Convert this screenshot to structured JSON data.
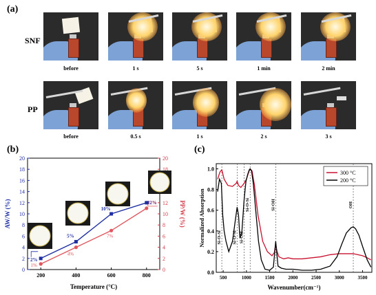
{
  "panel_a": {
    "label": "(a)",
    "rows": [
      {
        "name": "SNF",
        "captions": [
          "before",
          "1 s",
          "5 s",
          "1 min",
          "2 min"
        ]
      },
      {
        "name": "PP",
        "captions": [
          "before",
          "0.5 s",
          "1 s",
          "2 s",
          "3 s"
        ]
      }
    ]
  },
  "panel_b": {
    "label": "(b)"
  },
  "panel_c": {
    "label": "(c)"
  },
  "chart_data": [
    {
      "type": "line",
      "xlabel": "Temperature (°C)",
      "ylabel_left": "AW/W (%)",
      "ylabel_right": "PP/W (%)",
      "x": [
        200,
        400,
        600,
        800
      ],
      "xlim": [
        125,
        875
      ],
      "xticks": [
        "200",
        "400",
        "600",
        "800"
      ],
      "ylim": [
        0,
        20
      ],
      "yticks": [
        "0",
        "2",
        "4",
        "6",
        "8",
        "10",
        "12",
        "14",
        "16",
        "18",
        "20"
      ],
      "series": [
        {
          "name": "AW/W (%)",
          "axis": "left",
          "color": "#1f2fa3",
          "values": [
            2,
            5,
            10,
            12
          ],
          "labels": [
            "2%",
            "5%",
            "10%",
            "12%"
          ]
        },
        {
          "name": "PP/W (%)",
          "axis": "right",
          "color": "#e0575f",
          "values": [
            1,
            4,
            7,
            11
          ],
          "labels": [
            "1%",
            "4%",
            "7%",
            "11%"
          ]
        }
      ],
      "grid": false
    },
    {
      "type": "line",
      "xlabel": "Wavenumber(cm⁻¹)",
      "ylabel": "Normalized Absorption",
      "xlim": [
        350,
        3700
      ],
      "ylim": [
        0,
        1.05
      ],
      "xticks": [
        "500",
        "1000",
        "1500",
        "2000",
        "2500",
        "3000",
        "3500"
      ],
      "yticks": [
        "0.0",
        "0.2",
        "0.4",
        "0.6",
        "0.8",
        "1.0"
      ],
      "legend": {
        "position": "top-right",
        "entries": [
          "300 °C",
          "200 °C"
        ]
      },
      "annotations": [
        {
          "x": 470,
          "text": "Si-O-Si"
        },
        {
          "x": 800,
          "text": "Si-O-Si"
        },
        {
          "x": 950,
          "text": "Si-OH"
        },
        {
          "x": 1080,
          "text": "Si-O-Si"
        },
        {
          "x": 1630,
          "text": "Si-OH"
        },
        {
          "x": 3300,
          "text": "OH"
        }
      ],
      "series": [
        {
          "name": "300 °C",
          "color": "#c8102e",
          "x": [
            380,
            430,
            470,
            520,
            600,
            700,
            780,
            800,
            830,
            880,
            950,
            1000,
            1050,
            1080,
            1120,
            1170,
            1250,
            1350,
            1450,
            1550,
            1600,
            1630,
            1660,
            1700,
            1800,
            1900,
            2000,
            2200,
            2400,
            2600,
            2800,
            3000,
            3200,
            3300,
            3400,
            3500,
            3600,
            3680
          ],
          "y": [
            0.9,
            0.97,
            0.99,
            0.9,
            0.84,
            0.83,
            0.86,
            0.88,
            0.84,
            0.82,
            0.86,
            0.9,
            0.97,
            1.0,
            0.98,
            0.85,
            0.55,
            0.3,
            0.2,
            0.16,
            0.19,
            0.27,
            0.2,
            0.15,
            0.13,
            0.14,
            0.13,
            0.13,
            0.14,
            0.15,
            0.17,
            0.18,
            0.18,
            0.18,
            0.17,
            0.16,
            0.14,
            0.12
          ]
        },
        {
          "name": "200 °C",
          "color": "#000000",
          "x": [
            380,
            420,
            460,
            490,
            520,
            560,
            620,
            700,
            760,
            800,
            830,
            860,
            900,
            950,
            990,
            1030,
            1060,
            1080,
            1110,
            1150,
            1200,
            1260,
            1320,
            1400,
            1500,
            1580,
            1630,
            1680,
            1750,
            1850,
            2000,
            2200,
            2400,
            2600,
            2800,
            2950,
            3050,
            3150,
            3250,
            3300,
            3350,
            3420,
            3500,
            3600,
            3680
          ],
          "y": [
            0.78,
            0.9,
            0.86,
            0.55,
            0.4,
            0.3,
            0.2,
            0.3,
            0.5,
            0.63,
            0.55,
            0.33,
            0.38,
            0.7,
            0.88,
            0.95,
            0.99,
            1.0,
            0.98,
            0.85,
            0.6,
            0.3,
            0.12,
            0.03,
            0.02,
            0.05,
            0.3,
            0.06,
            0.04,
            0.03,
            0.03,
            0.02,
            0.02,
            0.03,
            0.06,
            0.15,
            0.27,
            0.38,
            0.43,
            0.44,
            0.42,
            0.36,
            0.25,
            0.12,
            0.05
          ]
        }
      ]
    }
  ]
}
